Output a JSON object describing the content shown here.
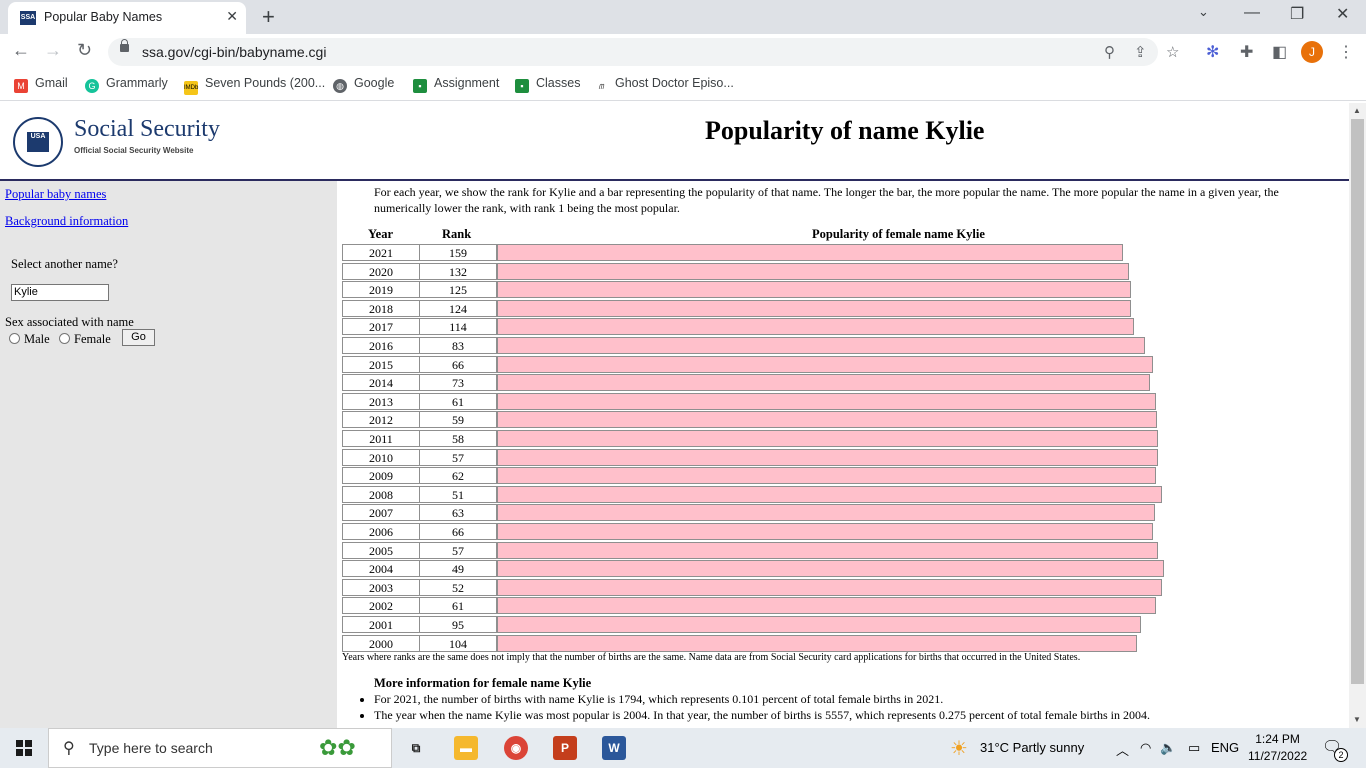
{
  "browser": {
    "tab_title": "Popular Baby Names",
    "tab_favicon": "SSA",
    "url": "ssa.gov/cgi-bin/babyname.cgi",
    "profile_initial": "J",
    "bookmarks": [
      {
        "label": "Gmail",
        "icon": "gmail-icon",
        "color": "#ea4335"
      },
      {
        "label": "Grammarly",
        "icon": "grammarly-icon",
        "color": "#15c39a"
      },
      {
        "label": "Seven Pounds (200...",
        "icon": "imdb-icon",
        "color": "#f5c518"
      },
      {
        "label": "Google",
        "icon": "globe-icon",
        "color": "#5f6368"
      },
      {
        "label": "Assignment",
        "icon": "classroom-icon",
        "color": "#1e8e3e"
      },
      {
        "label": "Classes",
        "icon": "classroom-icon",
        "color": "#1e8e3e"
      },
      {
        "label": "Ghost Doctor Episo...",
        "icon": "site-icon",
        "color": "#333333"
      }
    ]
  },
  "header": {
    "org_name": "Social Security",
    "org_sub": "Official Social Security Website",
    "seal_text": "USA",
    "title": "Popularity of name Kylie"
  },
  "sidebar": {
    "link_popular": "Popular baby names",
    "link_background": "Background information",
    "select_label": "Select another name?",
    "name_value": "Kylie",
    "sex_label": "Sex associated with name",
    "male_label": "Male",
    "female_label": "Female",
    "go_label": "Go"
  },
  "main": {
    "intro": "For each year, we show the rank for Kylie and a bar representing the popularity of that name. The longer the bar, the more popular the name. The more popular the name in a given year, the numerically lower the rank, with rank 1 being the most popular.",
    "col_year": "Year",
    "col_rank": "Rank",
    "col_bar": "Popularity of female name Kylie",
    "rows": [
      {
        "year": "2021",
        "rank": "159"
      },
      {
        "year": "2020",
        "rank": "132"
      },
      {
        "year": "2019",
        "rank": "125"
      },
      {
        "year": "2018",
        "rank": "124"
      },
      {
        "year": "2017",
        "rank": "114"
      },
      {
        "year": "2016",
        "rank": "83"
      },
      {
        "year": "2015",
        "rank": "66"
      },
      {
        "year": "2014",
        "rank": "73"
      },
      {
        "year": "2013",
        "rank": "61"
      },
      {
        "year": "2012",
        "rank": "59"
      },
      {
        "year": "2011",
        "rank": "58"
      },
      {
        "year": "2010",
        "rank": "57"
      },
      {
        "year": "2009",
        "rank": "62"
      },
      {
        "year": "2008",
        "rank": "51"
      },
      {
        "year": "2007",
        "rank": "63"
      },
      {
        "year": "2006",
        "rank": "66"
      },
      {
        "year": "2005",
        "rank": "57"
      },
      {
        "year": "2004",
        "rank": "49"
      },
      {
        "year": "2003",
        "rank": "52"
      },
      {
        "year": "2002",
        "rank": "61"
      },
      {
        "year": "2001",
        "rank": "95"
      },
      {
        "year": "2000",
        "rank": "104"
      }
    ],
    "bar_color": "#ffc0cb",
    "footnote": "Years where ranks are the same does not imply that the number of births are the same. Name data are from Social Security card applications for births that occurred in the United States.",
    "more_title": "More information for female name Kylie",
    "bullets": [
      "For 2021, the number of births with name Kylie is 1794, which represents 0.101 percent of total female births in 2021.",
      "The year when the name Kylie was most popular is 2004. In that year, the number of births is 5557, which represents 0.275 percent of total female births in 2004."
    ]
  },
  "taskbar": {
    "search_placeholder": "Type here to search",
    "weather": "31°C  Partly sunny",
    "lang": "ENG",
    "time": "1:24 PM",
    "date": "11/27/2022",
    "notifications": "2"
  }
}
